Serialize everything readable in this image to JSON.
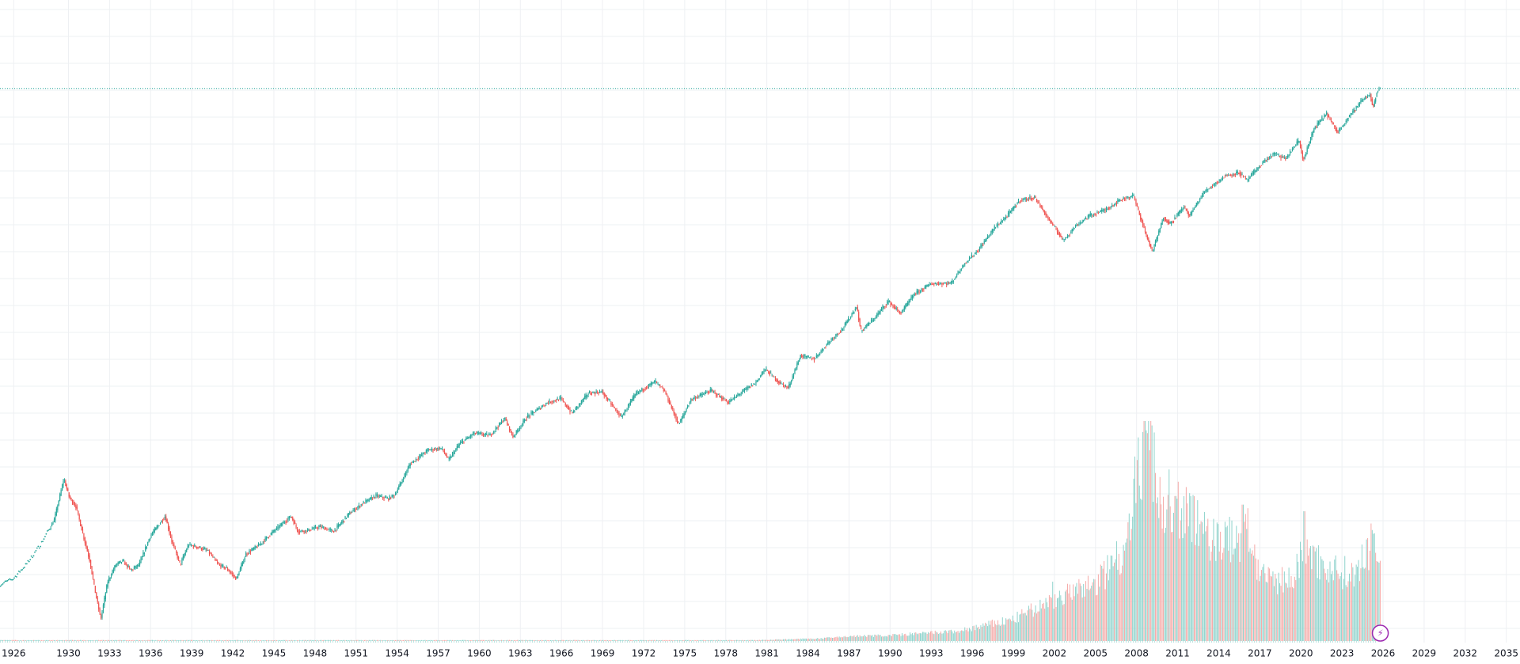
{
  "colors": {
    "up": "#26a69a",
    "down": "#ef5350",
    "up_volume": "#8fd3cc",
    "down_volume": "#f5aaa8",
    "price_line": "#26a69a",
    "grid": "#eef0f3",
    "axis_text": "#131722",
    "replay_accent": "#9c27b0"
  },
  "icons": {
    "replay": "lightning-icon"
  },
  "chart_data": {
    "type": "candlestick",
    "grid": true,
    "x_axis": {
      "range": [
        1925.0,
        2036.0
      ],
      "tick_labels": [
        "1926",
        "1930",
        "1933",
        "1936",
        "1939",
        "1942",
        "1945",
        "1948",
        "1951",
        "1954",
        "1957",
        "1960",
        "1963",
        "1966",
        "1969",
        "1972",
        "1975",
        "1978",
        "1981",
        "1984",
        "1987",
        "1990",
        "1993",
        "1996",
        "1999",
        "2002",
        "2005",
        "2008",
        "2011",
        "2014",
        "2017",
        "2020",
        "2023",
        "2026",
        "2029",
        "2032",
        "2035"
      ],
      "tick_years": [
        1926,
        1930,
        1933,
        1936,
        1939,
        1942,
        1945,
        1948,
        1951,
        1954,
        1957,
        1960,
        1963,
        1966,
        1969,
        1972,
        1975,
        1978,
        1981,
        1984,
        1987,
        1990,
        1993,
        1996,
        1999,
        2002,
        2005,
        2008,
        2011,
        2014,
        2017,
        2020,
        2023,
        2026,
        2029,
        2032,
        2035
      ]
    },
    "y_axis": {
      "scale": "log",
      "range": [
        4,
        7500
      ]
    },
    "dots_until": 1928.6,
    "last_price": 6600,
    "price_path": [
      [
        1925.0,
        7.2
      ],
      [
        1926.0,
        7.8
      ],
      [
        1927.0,
        9.6
      ],
      [
        1928.0,
        12.5
      ],
      [
        1929.0,
        17.5
      ],
      [
        1929.7,
        31.0
      ],
      [
        1930.1,
        24.0
      ],
      [
        1930.6,
        21.0
      ],
      [
        1931.0,
        15.5
      ],
      [
        1931.6,
        10.0
      ],
      [
        1932.0,
        6.5
      ],
      [
        1932.4,
        4.5
      ],
      [
        1932.9,
        7.5
      ],
      [
        1933.5,
        9.5
      ],
      [
        1934.0,
        10.0
      ],
      [
        1934.6,
        8.8
      ],
      [
        1935.2,
        9.5
      ],
      [
        1936.0,
        14.0
      ],
      [
        1937.1,
        18.5
      ],
      [
        1937.6,
        13.0
      ],
      [
        1938.2,
        9.5
      ],
      [
        1938.8,
        12.5
      ],
      [
        1939.6,
        12.0
      ],
      [
        1940.2,
        11.5
      ],
      [
        1941.0,
        9.5
      ],
      [
        1941.6,
        9.0
      ],
      [
        1942.3,
        7.8
      ],
      [
        1943.0,
        11.0
      ],
      [
        1944.0,
        12.5
      ],
      [
        1945.0,
        15.0
      ],
      [
        1946.3,
        18.5
      ],
      [
        1946.8,
        15.0
      ],
      [
        1947.5,
        15.2
      ],
      [
        1948.4,
        16.0
      ],
      [
        1949.4,
        15.0
      ],
      [
        1950.5,
        19.0
      ],
      [
        1951.5,
        22.0
      ],
      [
        1952.5,
        24.5
      ],
      [
        1953.4,
        23.5
      ],
      [
        1953.9,
        25.0
      ],
      [
        1955.0,
        38.0
      ],
      [
        1956.3,
        46.0
      ],
      [
        1957.3,
        47.0
      ],
      [
        1957.8,
        40.0
      ],
      [
        1958.6,
        50.0
      ],
      [
        1959.7,
        58.0
      ],
      [
        1960.8,
        56.0
      ],
      [
        1961.9,
        71.0
      ],
      [
        1962.5,
        55.0
      ],
      [
        1963.5,
        72.0
      ],
      [
        1965.0,
        88.0
      ],
      [
        1966.0,
        93.0
      ],
      [
        1966.8,
        76.0
      ],
      [
        1968.0,
        100.0
      ],
      [
        1969.0,
        102.0
      ],
      [
        1970.4,
        72.0
      ],
      [
        1971.5,
        100.0
      ],
      [
        1972.9,
        118.0
      ],
      [
        1973.6,
        102.0
      ],
      [
        1974.6,
        65.0
      ],
      [
        1975.5,
        92.0
      ],
      [
        1977.0,
        104.0
      ],
      [
        1978.2,
        88.0
      ],
      [
        1979.5,
        106.0
      ],
      [
        1980.2,
        115.0
      ],
      [
        1980.9,
        140.0
      ],
      [
        1982.0,
        115.0
      ],
      [
        1982.6,
        108.0
      ],
      [
        1983.5,
        168.0
      ],
      [
        1984.5,
        160.0
      ],
      [
        1985.5,
        200.0
      ],
      [
        1986.6,
        245.0
      ],
      [
        1987.6,
        330.0
      ],
      [
        1987.9,
        235.0
      ],
      [
        1988.8,
        275.0
      ],
      [
        1989.9,
        355.0
      ],
      [
        1990.8,
        300.0
      ],
      [
        1991.8,
        390.0
      ],
      [
        1993.0,
        450.0
      ],
      [
        1994.5,
        455.0
      ],
      [
        1995.5,
        600.0
      ],
      [
        1996.5,
        720.0
      ],
      [
        1997.6,
        960.0
      ],
      [
        1998.6,
        1150.0
      ],
      [
        1999.5,
        1420.0
      ],
      [
        2000.6,
        1480.0
      ],
      [
        2001.6,
        1100.0
      ],
      [
        2002.7,
        820.0
      ],
      [
        2003.6,
        1000.0
      ],
      [
        2004.6,
        1150.0
      ],
      [
        2005.8,
        1250.0
      ],
      [
        2006.8,
        1420.0
      ],
      [
        2007.8,
        1520.0
      ],
      [
        2008.7,
        900.0
      ],
      [
        2009.2,
        700.0
      ],
      [
        2010.0,
        1120.0
      ],
      [
        2010.5,
        1030.0
      ],
      [
        2011.5,
        1300.0
      ],
      [
        2011.9,
        1150.0
      ],
      [
        2013.0,
        1600.0
      ],
      [
        2014.5,
        1980.0
      ],
      [
        2015.5,
        2080.0
      ],
      [
        2016.1,
        1870.0
      ],
      [
        2017.3,
        2400.0
      ],
      [
        2018.1,
        2700.0
      ],
      [
        2018.9,
        2500.0
      ],
      [
        2019.9,
        3250.0
      ],
      [
        2020.2,
        2450.0
      ],
      [
        2021.0,
        3800.0
      ],
      [
        2021.9,
        4700.0
      ],
      [
        2022.7,
        3600.0
      ],
      [
        2023.5,
        4450.0
      ],
      [
        2024.5,
        5600.0
      ],
      [
        2025.1,
        6100.0
      ],
      [
        2025.3,
        5000.0
      ],
      [
        2025.6,
        6400.0
      ],
      [
        2025.8,
        6650.0
      ]
    ],
    "volume_scale_max": 1.0,
    "volume_path": [
      [
        1925.0,
        0.004
      ],
      [
        1980.0,
        0.004
      ],
      [
        1985.0,
        0.012
      ],
      [
        1987.0,
        0.022
      ],
      [
        1990.0,
        0.026
      ],
      [
        1995.0,
        0.045
      ],
      [
        1999.0,
        0.1
      ],
      [
        2002.0,
        0.19
      ],
      [
        2005.0,
        0.26
      ],
      [
        2007.0,
        0.42
      ],
      [
        2008.5,
        0.9
      ],
      [
        2009.2,
        0.8
      ],
      [
        2010.0,
        0.58
      ],
      [
        2011.5,
        0.6
      ],
      [
        2013.0,
        0.48
      ],
      [
        2015.0,
        0.45
      ],
      [
        2016.2,
        0.5
      ],
      [
        2017.0,
        0.28
      ],
      [
        2019.5,
        0.28
      ],
      [
        2020.2,
        0.46
      ],
      [
        2021.0,
        0.37
      ],
      [
        2022.5,
        0.32
      ],
      [
        2024.0,
        0.3
      ],
      [
        2025.3,
        0.46
      ],
      [
        2025.8,
        0.34
      ]
    ],
    "volume_spikes": [
      [
        2001.8,
        0.27
      ],
      [
        2008.6,
        1.0
      ],
      [
        2009.1,
        0.98
      ],
      [
        2010.3,
        0.78
      ],
      [
        2011.6,
        0.7
      ],
      [
        2015.7,
        0.62
      ],
      [
        2016.1,
        0.58
      ],
      [
        2020.2,
        0.59
      ],
      [
        2025.3,
        0.49
      ]
    ]
  }
}
